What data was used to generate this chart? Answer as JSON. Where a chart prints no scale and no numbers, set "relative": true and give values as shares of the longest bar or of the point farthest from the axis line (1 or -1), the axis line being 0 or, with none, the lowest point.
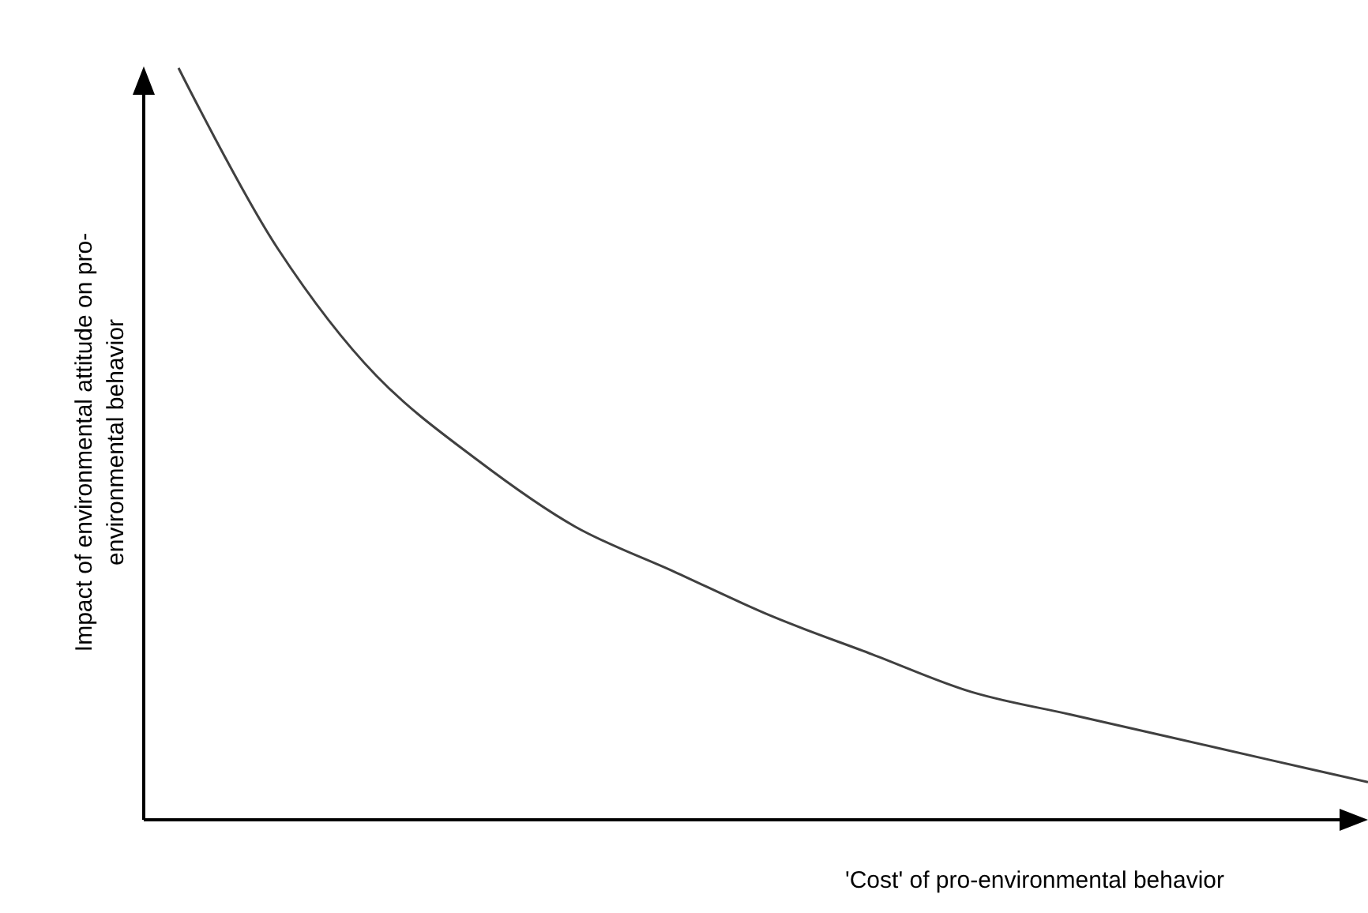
{
  "chart_data": {
    "type": "line",
    "relative": true,
    "xlabel": "'Cost' of pro-environmental behavior",
    "ylabel": "Impact of environmental attitude on pro-environmental behavior",
    "categories": [
      null,
      null,
      null,
      null,
      null,
      null,
      null,
      null,
      null,
      null,
      null,
      null,
      null
    ],
    "series": [
      {
        "color": "#404040",
        "values": [
          1,
          0.76,
          0.59,
          0.48,
          0.39,
          0.33,
          0.27,
          0.22,
          0.17,
          0.14,
          0.11,
          0.08,
          0.05
        ]
      }
    ],
    "marker": "none",
    "line_style": "solid",
    "tick_labels": false
  }
}
